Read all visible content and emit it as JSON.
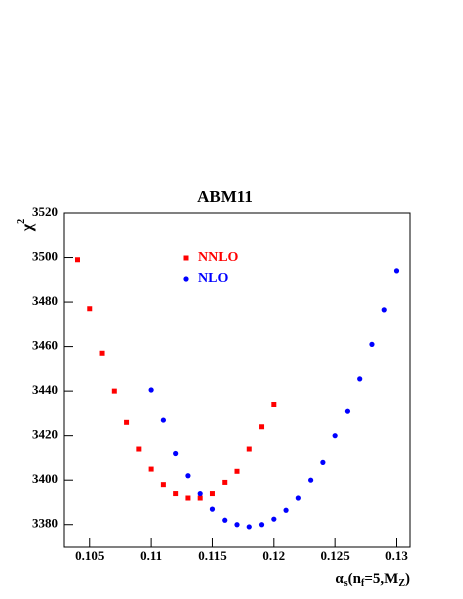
{
  "chart_data": {
    "type": "scatter",
    "title": "ABM11",
    "xlabel": [
      "α",
      "s",
      "(n",
      "f",
      "=5,M",
      "Z",
      ")"
    ],
    "ylabel": [
      "χ",
      "2"
    ],
    "xlim": [
      0.1029,
      0.1311
    ],
    "ylim": [
      3370,
      3520
    ],
    "xticks": [
      0.105,
      0.11,
      0.115,
      0.12,
      0.125,
      0.13
    ],
    "yticks": [
      3380,
      3400,
      3420,
      3440,
      3460,
      3480,
      3500,
      3520
    ],
    "series": [
      {
        "name": "NNLO",
        "color": "#ff0000",
        "marker": "square",
        "x": [
          0.104,
          0.105,
          0.106,
          0.107,
          0.108,
          0.109,
          0.11,
          0.111,
          0.112,
          0.113,
          0.114,
          0.115,
          0.116,
          0.117,
          0.118,
          0.119,
          0.12
        ],
        "values": [
          3499,
          3477,
          3457,
          3440,
          3426,
          3414,
          3405,
          3398,
          3394,
          3392,
          3392,
          3394,
          3399,
          3404,
          3414,
          3424,
          3434
        ]
      },
      {
        "name": "NLO",
        "color": "#0000ff",
        "marker": "circle",
        "x": [
          0.11,
          0.111,
          0.112,
          0.113,
          0.114,
          0.115,
          0.116,
          0.117,
          0.118,
          0.119,
          0.12,
          0.121,
          0.122,
          0.123,
          0.124,
          0.125,
          0.126,
          0.127,
          0.128,
          0.129,
          0.13
        ],
        "values": [
          3440.5,
          3427,
          3412,
          3402,
          3394,
          3387,
          3382,
          3380,
          3379,
          3380,
          3382.5,
          3386.5,
          3392,
          3400,
          3408,
          3420,
          3431,
          3445.5,
          3461,
          3476.5,
          3494
        ]
      }
    ]
  }
}
